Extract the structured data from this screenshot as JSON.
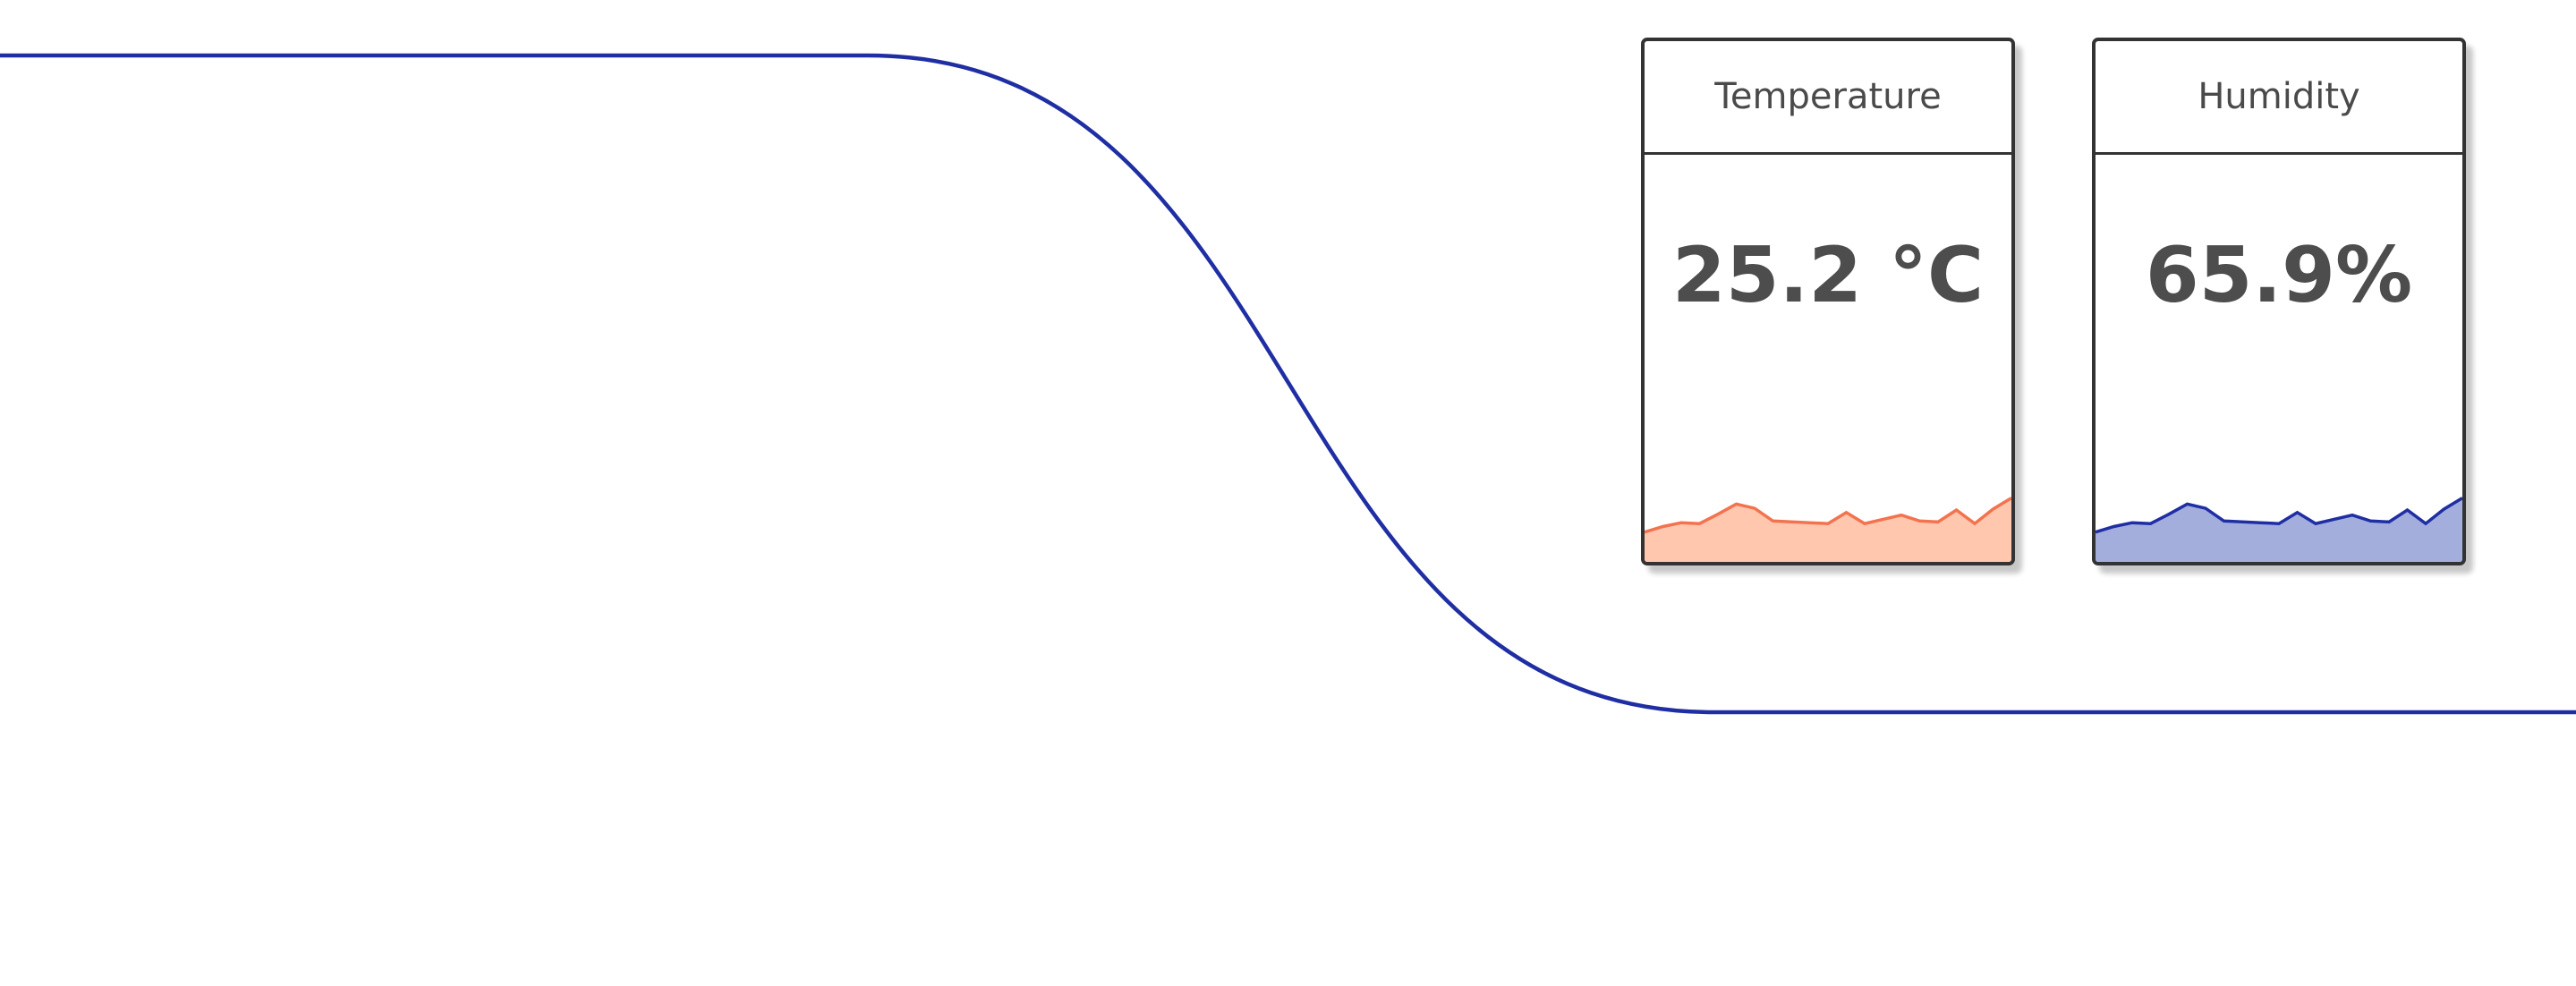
{
  "connector": {
    "color": "#1f2fa3"
  },
  "cards": {
    "temperature": {
      "title": "Temperature",
      "value": "25.2 °C",
      "line_color": "#f4734f",
      "fill_color": "#fec7ae",
      "trend": [
        0.93,
        0.995,
        1.04,
        1.03,
        1.14,
        1.26,
        1.21,
        1.06,
        1.05,
        1.04,
        1.03,
        1.16,
        1.03,
        1.08,
        1.13,
        1.06,
        1.05,
        1.19,
        1.03,
        1.2,
        1.33
      ]
    },
    "humidity": {
      "title": "Humidity",
      "value": "65.9%",
      "line_color": "#1f2fa3",
      "fill_color": "#a3aedd",
      "trend": [
        0.93,
        0.995,
        1.04,
        1.03,
        1.14,
        1.26,
        1.21,
        1.06,
        1.05,
        1.04,
        1.03,
        1.16,
        1.03,
        1.08,
        1.13,
        1.06,
        1.05,
        1.19,
        1.03,
        1.2,
        1.33
      ]
    }
  }
}
